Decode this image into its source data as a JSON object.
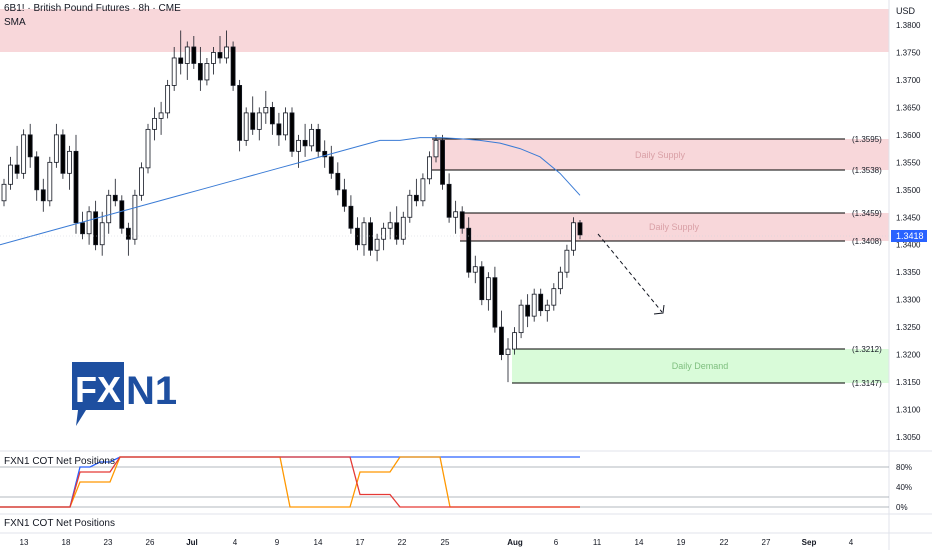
{
  "header": {
    "symbol_line": "6B1! · British Pound Futures · 8h · CME",
    "indicator": "SMA"
  },
  "currency": "USD",
  "price_axis": {
    "ticks": [
      "1.3800",
      "1.3750",
      "1.3700",
      "1.3650",
      "1.3600",
      "1.3550",
      "1.3500",
      "1.3450",
      "1.3400",
      "1.3350",
      "1.3300",
      "1.3250",
      "1.3200",
      "1.3150",
      "1.3100",
      "1.3050"
    ],
    "current_price_label": "1.3418"
  },
  "time_axis": {
    "labels": [
      "13",
      "18",
      "23",
      "26",
      "Jul",
      "4",
      "9",
      "14",
      "17",
      "22",
      "25",
      "Aug",
      "6",
      "11",
      "14",
      "19",
      "22",
      "27",
      "Sep",
      "4"
    ]
  },
  "zones": [
    {
      "name": "Daily Supply",
      "upper_label": "(1.3595)",
      "lower_label": "(1.3538)"
    },
    {
      "name": "Daily Supply",
      "upper_label": "(1.3459)",
      "lower_label": "(1.3408)"
    },
    {
      "name": "Daily Demand",
      "upper_label": "(1.3212)",
      "lower_label": "(1.3147)"
    }
  ],
  "top_zone_label": "",
  "logo": {
    "text_fx": "FX",
    "text_n1": "N1"
  },
  "cot_panel": {
    "title": "FXN1 COT Net Positions",
    "bottom_title": "FXN1 COT Net Positions",
    "ticks": [
      "80%",
      "40%",
      "0%"
    ]
  },
  "colors": {
    "up": "#131722",
    "down": "#000000",
    "sma": "#3a7bd5",
    "supply_zone": "#f8d7da",
    "demand_zone": "#d4f7d4",
    "cot_blue": "#2962ff",
    "cot_orange": "#ff9800",
    "cot_red": "#e53935"
  },
  "chart_data": {
    "type": "candlestick",
    "title": "6B1! · British Pound Futures · 8h · CME",
    "ylim": [
      1.302,
      1.383
    ],
    "zones": [
      {
        "kind": "supply",
        "low": 1.3538,
        "high": 1.3595
      },
      {
        "kind": "supply",
        "low": 1.3408,
        "high": 1.3459
      },
      {
        "kind": "demand",
        "low": 1.3147,
        "high": 1.3212
      },
      {
        "kind": "supply",
        "low": 1.3755,
        "high": 1.383
      }
    ],
    "last_price": 1.3418,
    "candles": [
      [
        1.348,
        1.352,
        1.347,
        1.351
      ],
      [
        1.351,
        1.356,
        1.35,
        1.3545
      ],
      [
        1.3545,
        1.358,
        1.352,
        1.353
      ],
      [
        1.353,
        1.361,
        1.352,
        1.36
      ],
      [
        1.36,
        1.362,
        1.354,
        1.356
      ],
      [
        1.356,
        1.357,
        1.348,
        1.35
      ],
      [
        1.35,
        1.352,
        1.346,
        1.348
      ],
      [
        1.348,
        1.356,
        1.347,
        1.355
      ],
      [
        1.355,
        1.362,
        1.354,
        1.36
      ],
      [
        1.36,
        1.361,
        1.352,
        1.353
      ],
      [
        1.353,
        1.358,
        1.35,
        1.357
      ],
      [
        1.357,
        1.36,
        1.342,
        1.344
      ],
      [
        1.344,
        1.346,
        1.341,
        1.342
      ],
      [
        1.342,
        1.347,
        1.34,
        1.346
      ],
      [
        1.346,
        1.348,
        1.339,
        1.34
      ],
      [
        1.34,
        1.346,
        1.338,
        1.344
      ],
      [
        1.344,
        1.35,
        1.342,
        1.349
      ],
      [
        1.349,
        1.352,
        1.347,
        1.348
      ],
      [
        1.348,
        1.349,
        1.342,
        1.343
      ],
      [
        1.343,
        1.344,
        1.338,
        1.341
      ],
      [
        1.341,
        1.35,
        1.34,
        1.349
      ],
      [
        1.349,
        1.355,
        1.348,
        1.354
      ],
      [
        1.354,
        1.362,
        1.353,
        1.361
      ],
      [
        1.361,
        1.365,
        1.359,
        1.363
      ],
      [
        1.363,
        1.366,
        1.36,
        1.364
      ],
      [
        1.364,
        1.37,
        1.363,
        1.369
      ],
      [
        1.369,
        1.376,
        1.368,
        1.374
      ],
      [
        1.374,
        1.379,
        1.371,
        1.373
      ],
      [
        1.373,
        1.377,
        1.37,
        1.376
      ],
      [
        1.376,
        1.378,
        1.372,
        1.373
      ],
      [
        1.373,
        1.376,
        1.368,
        1.37
      ],
      [
        1.37,
        1.374,
        1.369,
        1.373
      ],
      [
        1.373,
        1.376,
        1.371,
        1.375
      ],
      [
        1.375,
        1.378,
        1.373,
        1.374
      ],
      [
        1.374,
        1.379,
        1.373,
        1.376
      ],
      [
        1.376,
        1.377,
        1.368,
        1.369
      ],
      [
        1.369,
        1.37,
        1.357,
        1.359
      ],
      [
        1.359,
        1.365,
        1.358,
        1.364
      ],
      [
        1.364,
        1.367,
        1.36,
        1.361
      ],
      [
        1.361,
        1.365,
        1.359,
        1.364
      ],
      [
        1.364,
        1.368,
        1.362,
        1.365
      ],
      [
        1.365,
        1.366,
        1.36,
        1.362
      ],
      [
        1.362,
        1.364,
        1.358,
        1.36
      ],
      [
        1.36,
        1.365,
        1.359,
        1.364
      ],
      [
        1.364,
        1.365,
        1.356,
        1.357
      ],
      [
        1.357,
        1.36,
        1.354,
        1.359
      ],
      [
        1.359,
        1.362,
        1.356,
        1.358
      ],
      [
        1.358,
        1.362,
        1.357,
        1.361
      ],
      [
        1.361,
        1.362,
        1.356,
        1.357
      ],
      [
        1.357,
        1.359,
        1.354,
        1.356
      ],
      [
        1.356,
        1.358,
        1.352,
        1.353
      ],
      [
        1.353,
        1.355,
        1.349,
        1.35
      ],
      [
        1.35,
        1.352,
        1.346,
        1.347
      ],
      [
        1.347,
        1.349,
        1.342,
        1.343
      ],
      [
        1.343,
        1.345,
        1.339,
        1.34
      ],
      [
        1.34,
        1.345,
        1.338,
        1.344
      ],
      [
        1.344,
        1.345,
        1.338,
        1.339
      ],
      [
        1.339,
        1.342,
        1.337,
        1.341
      ],
      [
        1.341,
        1.344,
        1.339,
        1.343
      ],
      [
        1.343,
        1.346,
        1.341,
        1.344
      ],
      [
        1.344,
        1.347,
        1.34,
        1.341
      ],
      [
        1.341,
        1.346,
        1.34,
        1.345
      ],
      [
        1.345,
        1.35,
        1.344,
        1.349
      ],
      [
        1.349,
        1.352,
        1.347,
        1.348
      ],
      [
        1.348,
        1.353,
        1.347,
        1.352
      ],
      [
        1.352,
        1.357,
        1.351,
        1.356
      ],
      [
        1.356,
        1.36,
        1.355,
        1.359
      ],
      [
        1.359,
        1.36,
        1.35,
        1.351
      ],
      [
        1.351,
        1.353,
        1.344,
        1.345
      ],
      [
        1.345,
        1.348,
        1.342,
        1.346
      ],
      [
        1.346,
        1.347,
        1.342,
        1.343
      ],
      [
        1.343,
        1.345,
        1.334,
        1.335
      ],
      [
        1.335,
        1.338,
        1.333,
        1.336
      ],
      [
        1.336,
        1.337,
        1.329,
        1.33
      ],
      [
        1.33,
        1.335,
        1.328,
        1.334
      ],
      [
        1.334,
        1.336,
        1.324,
        1.325
      ],
      [
        1.325,
        1.328,
        1.319,
        1.32
      ],
      [
        1.32,
        1.323,
        1.315,
        1.321
      ],
      [
        1.321,
        1.325,
        1.32,
        1.324
      ],
      [
        1.324,
        1.33,
        1.323,
        1.329
      ],
      [
        1.329,
        1.331,
        1.325,
        1.327
      ],
      [
        1.327,
        1.332,
        1.326,
        1.331
      ],
      [
        1.331,
        1.332,
        1.327,
        1.328
      ],
      [
        1.328,
        1.33,
        1.326,
        1.329
      ],
      [
        1.329,
        1.333,
        1.328,
        1.332
      ],
      [
        1.332,
        1.336,
        1.331,
        1.335
      ],
      [
        1.335,
        1.34,
        1.334,
        1.339
      ],
      [
        1.339,
        1.345,
        1.338,
        1.344
      ],
      [
        1.344,
        1.3445,
        1.341,
        1.3418
      ]
    ],
    "sma": [
      1.34,
      1.341,
      1.342,
      1.343,
      1.344,
      1.345,
      1.346,
      1.347,
      1.348,
      1.349,
      1.35,
      1.351,
      1.352,
      1.353,
      1.354,
      1.355,
      1.356,
      1.357,
      1.358,
      1.359,
      1.359,
      1.3595,
      1.3595,
      1.3593,
      1.359,
      1.3585,
      1.3575,
      1.356,
      1.353,
      1.349
    ],
    "cot_series": [
      {
        "color": "#2962ff",
        "values": [
          0,
          0,
          0,
          0,
          0,
          0,
          0,
          0,
          80,
          80,
          90,
          90,
          100,
          100,
          100,
          100,
          100,
          100,
          100,
          100,
          100,
          100,
          100,
          100,
          100,
          100,
          100,
          100,
          100,
          100,
          100,
          100,
          100,
          100,
          100,
          100,
          100,
          100,
          100,
          100,
          100,
          100,
          100,
          100,
          100,
          100,
          100,
          100,
          100,
          100,
          100,
          100,
          100,
          100,
          100,
          100,
          100,
          100,
          100
        ]
      },
      {
        "color": "#ff9800",
        "values": [
          0,
          0,
          0,
          0,
          0,
          0,
          0,
          0,
          50,
          50,
          50,
          50,
          100,
          100,
          100,
          100,
          100,
          100,
          100,
          100,
          100,
          100,
          100,
          100,
          100,
          100,
          100,
          100,
          100,
          0,
          0,
          0,
          0,
          0,
          0,
          0,
          70,
          70,
          70,
          70,
          100,
          100,
          100,
          100,
          100,
          0,
          0,
          0,
          0,
          0,
          0,
          0,
          0,
          0,
          0,
          0,
          0,
          0,
          0
        ]
      },
      {
        "color": "#e53935",
        "values": [
          0,
          0,
          0,
          0,
          0,
          0,
          0,
          0,
          70,
          70,
          70,
          70,
          100,
          100,
          100,
          100,
          100,
          100,
          100,
          100,
          100,
          100,
          100,
          100,
          100,
          100,
          100,
          100,
          100,
          100,
          100,
          100,
          100,
          100,
          100,
          100,
          25,
          25,
          25,
          25,
          0,
          0,
          0,
          0,
          0,
          0,
          0,
          0,
          0,
          0,
          0,
          0,
          0,
          0,
          0,
          0,
          0,
          0,
          0
        ]
      }
    ]
  }
}
